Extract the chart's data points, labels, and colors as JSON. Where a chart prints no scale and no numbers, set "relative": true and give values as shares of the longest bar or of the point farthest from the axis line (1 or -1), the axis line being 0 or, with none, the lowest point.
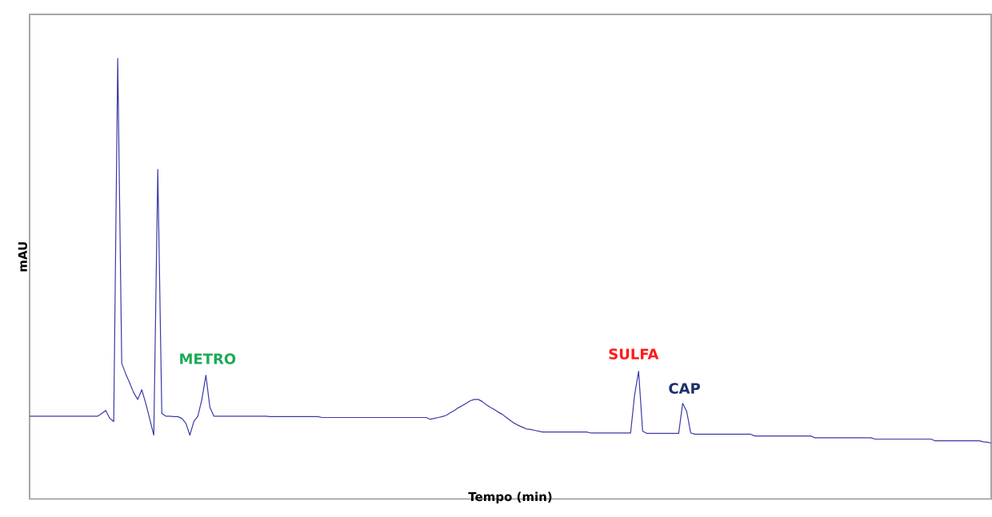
{
  "chart_data": {
    "type": "line",
    "relative": true,
    "xlabel": "Tempo (min)",
    "ylabel": "mAU",
    "tick_labels": false,
    "color": "#3a3aa8",
    "categories": [
      null,
      null,
      null,
      null,
      null,
      null,
      null,
      null,
      null,
      null,
      null,
      null,
      null,
      null,
      null,
      null,
      null,
      null,
      null,
      null,
      null,
      null,
      null,
      null,
      null,
      null,
      null,
      null,
      null,
      null,
      null,
      null,
      null,
      null,
      null,
      null,
      null,
      null,
      null,
      null,
      null,
      null,
      null,
      null,
      null,
      null,
      null,
      null,
      null,
      null,
      null,
      null,
      null,
      null,
      null,
      null,
      null,
      null,
      null,
      null,
      null,
      null,
      null,
      null,
      null,
      null,
      null,
      null,
      null,
      null,
      null,
      null,
      null,
      null,
      null,
      null,
      null,
      null,
      null,
      null,
      null,
      null,
      null,
      null,
      null,
      null,
      null,
      null,
      null,
      null,
      null,
      null,
      null,
      null,
      null,
      null,
      null,
      null,
      null,
      null,
      null,
      null,
      null,
      null,
      null,
      null,
      null,
      null,
      null,
      null,
      null,
      null,
      null,
      null,
      null,
      null,
      null,
      null,
      null,
      null,
      null,
      null,
      null,
      null,
      null,
      null,
      null,
      null,
      null,
      null,
      null,
      null,
      null,
      null,
      null,
      null,
      null,
      null,
      null,
      null,
      null,
      null,
      null,
      null,
      null,
      null,
      null,
      null,
      null,
      null,
      null,
      null,
      null,
      null,
      null,
      null,
      null,
      null,
      null,
      null,
      null,
      null,
      null,
      null,
      null,
      null,
      null,
      null,
      null,
      null,
      null,
      null,
      null,
      null,
      null,
      null,
      null,
      null,
      null,
      null,
      null,
      null,
      null,
      null,
      null,
      null,
      null,
      null,
      null,
      null,
      null,
      null,
      null,
      null,
      null,
      null,
      null,
      null,
      null,
      null,
      null,
      null,
      null,
      null,
      null,
      null,
      null,
      null,
      null,
      null,
      null,
      null,
      null,
      null,
      null,
      null,
      null,
      null,
      null,
      null,
      null,
      null,
      null,
      null,
      null,
      null,
      null,
      null,
      null,
      null,
      null,
      null,
      null,
      null,
      null,
      null,
      null,
      null,
      null,
      null,
      null
    ],
    "values": [
      0.188,
      0.188,
      0.188,
      0.188,
      0.188,
      0.188,
      0.188,
      0.188,
      0.188,
      0.188,
      0.188,
      0.188,
      0.188,
      0.188,
      0.188,
      0.188,
      0.188,
      0.188,
      0.194,
      0.201,
      0.183,
      0.176,
      1.0,
      0.308,
      0.284,
      0.263,
      0.241,
      0.226,
      0.248,
      0.217,
      0.181,
      0.145,
      0.748,
      0.194,
      0.188,
      0.188,
      0.187,
      0.187,
      0.183,
      0.172,
      0.145,
      0.176,
      0.188,
      0.226,
      0.281,
      0.208,
      0.188,
      0.188,
      0.188,
      0.188,
      0.188,
      0.188,
      0.188,
      0.188,
      0.188,
      0.188,
      0.188,
      0.188,
      0.188,
      0.188,
      0.187,
      0.187,
      0.187,
      0.187,
      0.187,
      0.187,
      0.187,
      0.187,
      0.187,
      0.187,
      0.187,
      0.187,
      0.187,
      0.185,
      0.185,
      0.185,
      0.185,
      0.185,
      0.185,
      0.185,
      0.185,
      0.185,
      0.185,
      0.185,
      0.185,
      0.185,
      0.185,
      0.185,
      0.185,
      0.185,
      0.185,
      0.185,
      0.185,
      0.185,
      0.185,
      0.185,
      0.185,
      0.185,
      0.185,
      0.185,
      0.181,
      0.183,
      0.185,
      0.187,
      0.19,
      0.196,
      0.201,
      0.207,
      0.212,
      0.217,
      0.223,
      0.226,
      0.226,
      0.221,
      0.214,
      0.208,
      0.203,
      0.197,
      0.192,
      0.185,
      0.178,
      0.172,
      0.167,
      0.163,
      0.159,
      0.158,
      0.156,
      0.154,
      0.152,
      0.152,
      0.152,
      0.152,
      0.152,
      0.152,
      0.152,
      0.152,
      0.152,
      0.152,
      0.152,
      0.152,
      0.15,
      0.15,
      0.15,
      0.15,
      0.15,
      0.15,
      0.15,
      0.15,
      0.15,
      0.15,
      0.15,
      0.236,
      0.29,
      0.154,
      0.149,
      0.149,
      0.149,
      0.149,
      0.149,
      0.149,
      0.149,
      0.149,
      0.149,
      0.217,
      0.199,
      0.15,
      0.147,
      0.147,
      0.147,
      0.147,
      0.147,
      0.147,
      0.147,
      0.147,
      0.147,
      0.147,
      0.147,
      0.147,
      0.147,
      0.147,
      0.147,
      0.143,
      0.143,
      0.143,
      0.143,
      0.143,
      0.143,
      0.143,
      0.143,
      0.143,
      0.143,
      0.143,
      0.143,
      0.143,
      0.143,
      0.143,
      0.139,
      0.139,
      0.139,
      0.139,
      0.139,
      0.139,
      0.139,
      0.139,
      0.139,
      0.139,
      0.139,
      0.139,
      0.139,
      0.139,
      0.139,
      0.136,
      0.136,
      0.136,
      0.136,
      0.136,
      0.136,
      0.136,
      0.136,
      0.136,
      0.136,
      0.136,
      0.136,
      0.136,
      0.136,
      0.136,
      0.132,
      0.132,
      0.132,
      0.132,
      0.132,
      0.132,
      0.132,
      0.132,
      0.132,
      0.132,
      0.132,
      0.132,
      0.13,
      0.129,
      0.127
    ],
    "annotations": [
      "METRO",
      "SULFA",
      "CAP"
    ]
  }
}
